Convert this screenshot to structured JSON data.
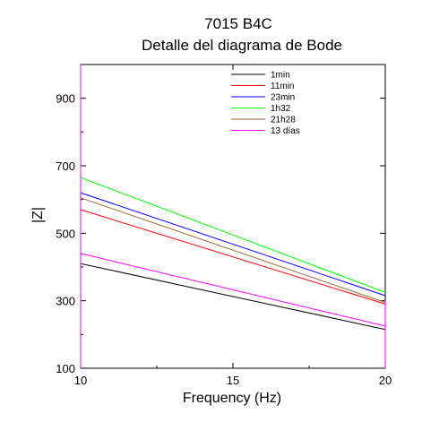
{
  "chart_data": {
    "type": "line",
    "title": "7015 B4C",
    "subtitle": "Detalle del diagrama de Bode",
    "xlabel": "Frequency (Hz)",
    "ylabel": "|Z|",
    "xlim": [
      10,
      20
    ],
    "ylim": [
      100,
      1000
    ],
    "x_ticks": [
      10,
      15,
      20
    ],
    "y_ticks": [
      100,
      300,
      500,
      700,
      900
    ],
    "legend_position": "top-right",
    "grid": false,
    "series": [
      {
        "name": "1min",
        "color": "#000000",
        "x": [
          10,
          20
        ],
        "values": [
          410,
          215
        ]
      },
      {
        "name": "11min",
        "color": "#ff0000",
        "x": [
          10,
          20
        ],
        "values": [
          570,
          290
        ]
      },
      {
        "name": "23min",
        "color": "#0000ff",
        "x": [
          10,
          20
        ],
        "values": [
          620,
          315
        ]
      },
      {
        "name": "1h32",
        "color": "#00ff00",
        "x": [
          10,
          20
        ],
        "values": [
          665,
          325
        ]
      },
      {
        "name": "21h28",
        "color": "#996633",
        "x": [
          10,
          20
        ],
        "values": [
          605,
          295
        ]
      },
      {
        "name": "13 días",
        "color": "#ff00ff",
        "x": [
          10,
          20
        ],
        "values": [
          440,
          225
        ]
      }
    ]
  }
}
